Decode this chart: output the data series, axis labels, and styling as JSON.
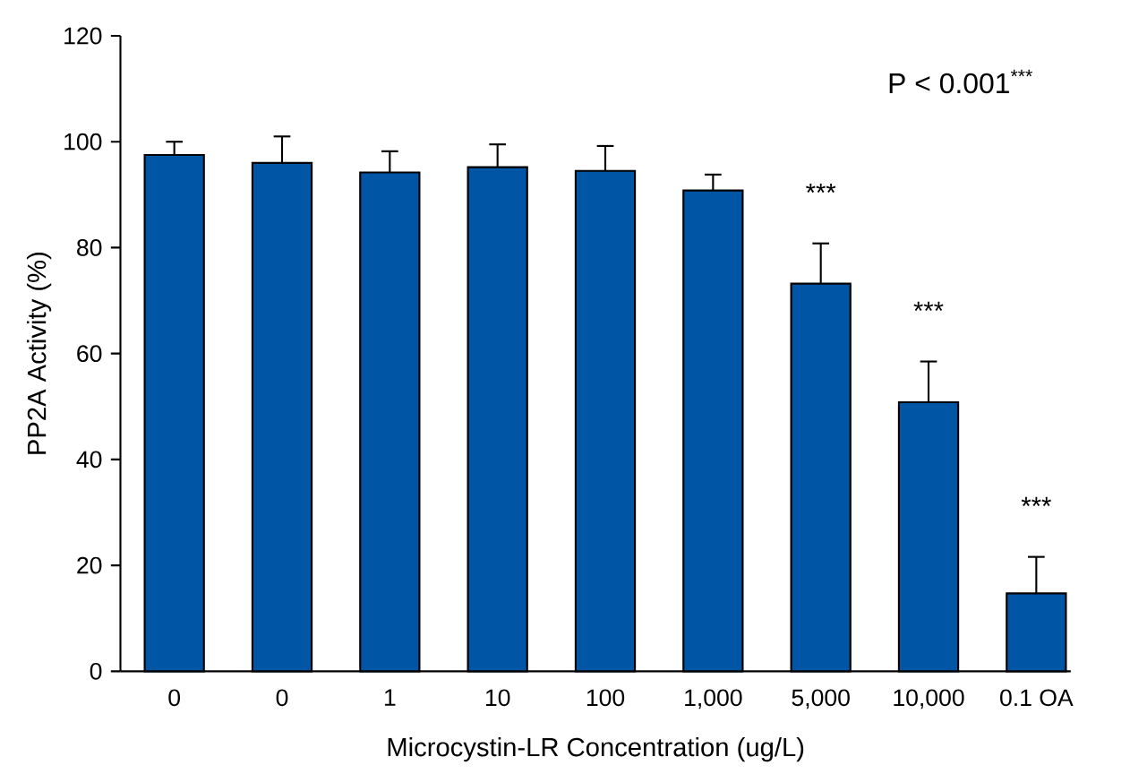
{
  "chart_data": {
    "type": "bar",
    "xlabel": "Microcystin-LR Concentration (ug/L)",
    "ylabel": "PP2A Activity (%)",
    "categories": [
      "0",
      "0",
      "1",
      "10",
      "100",
      "1,000",
      "5,000",
      "10,000",
      "0.1 OA"
    ],
    "values": [
      97.5,
      96,
      94.2,
      95.2,
      94.5,
      90.8,
      73.2,
      50.8,
      14.7
    ],
    "errors": [
      2.5,
      5,
      4,
      4.3,
      4.7,
      3,
      7.6,
      7.7,
      6.9
    ],
    "color": "#0055a5",
    "ylim": [
      0,
      120
    ],
    "yticks": [
      0,
      20,
      40,
      60,
      80,
      100,
      120
    ],
    "annotations": [
      "P < 0.001$^{***}$",
      {
        "text": "***",
        "x": "5,000",
        "y": 80.8
      },
      {
        "text": "***",
        "x": "10,000",
        "y": 58.5
      },
      {
        "text": "***",
        "x": "0.1 OA",
        "y": 21.6
      }
    ]
  }
}
